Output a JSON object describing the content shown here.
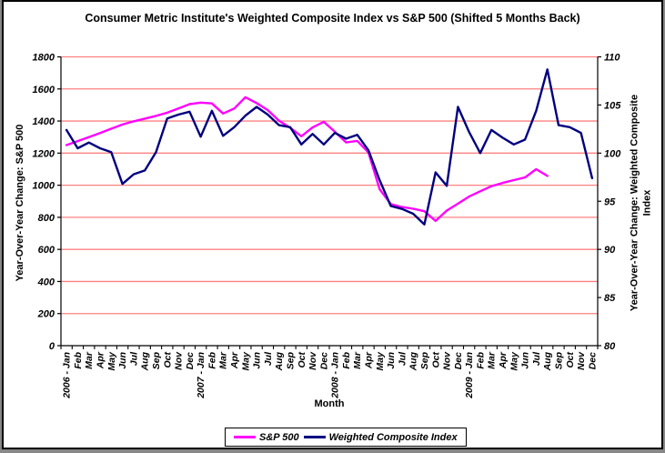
{
  "chart": {
    "title": "Consumer Metric Institute's Weighted Composite Index vs S&P 500 (Shifted 5 Months Back)"
  },
  "chart_data": {
    "type": "line",
    "title": "Consumer Metric Institute's Weighted Composite Index vs S&P 500 (Shifted 5 Months Back)",
    "legend_position": "bottom",
    "grid": "horizontal",
    "gridline_color": "#FF8080",
    "axis_color": "#000000",
    "x_axis": {
      "label": "Month",
      "categories": [
        "2006 - Jan",
        "Feb",
        "Mar",
        "Apr",
        "May",
        "Jun",
        "Jul",
        "Aug",
        "Sep",
        "Oct",
        "Nov",
        "Dec",
        "2007 - Jan",
        "Feb",
        "Mar",
        "Apr",
        "May",
        "Jun",
        "Jul",
        "Aug",
        "Sep",
        "Oct",
        "Nov",
        "Dec",
        "2008 - Jan",
        "Feb",
        "Mar",
        "Apr",
        "May",
        "Jun",
        "Jul",
        "Aug",
        "Sep",
        "Oct",
        "Nov",
        "Dec",
        "2009 - Jan",
        "Feb",
        "Mar",
        "Apr",
        "May",
        "Jun",
        "Jul",
        "Aug",
        "Sep",
        "Oct",
        "Nov",
        "Dec"
      ]
    },
    "y_axis_left": {
      "label": "Year-Over-Year Change: S&P 500",
      "min": 0,
      "max": 1800,
      "tick_interval": 200,
      "ticks": [
        0,
        200,
        400,
        600,
        800,
        1000,
        1200,
        1400,
        1600,
        1800
      ]
    },
    "y_axis_right": {
      "label_line1": "Year-Over-Year Change: Weighted Composite",
      "label_line2": "Index",
      "min": 80,
      "max": 110,
      "tick_interval": 5,
      "ticks": [
        80,
        85,
        90,
        95,
        100,
        105,
        110
      ]
    },
    "series": [
      {
        "name": "S&P 500",
        "axis": "left",
        "color": "#FF00FF",
        "values": [
          1250,
          1275,
          1300,
          1325,
          1352,
          1378,
          1398,
          1415,
          1432,
          1452,
          1478,
          1505,
          1515,
          1510,
          1447,
          1478,
          1548,
          1512,
          1468,
          1402,
          1358,
          1305,
          1360,
          1395,
          1333,
          1267,
          1276,
          1204,
          975,
          882,
          864,
          853,
          838,
          777,
          842,
          885,
          929,
          962,
          994,
          1014,
          1032,
          1048,
          1100,
          1058,
          null,
          null,
          null,
          null
        ]
      },
      {
        "name": "Weighted Composite Index",
        "axis": "right",
        "color": "#000080",
        "values": [
          102.4,
          100.5,
          101.1,
          100.5,
          100.1,
          96.8,
          97.8,
          98.2,
          100.1,
          103.6,
          104.0,
          104.3,
          101.7,
          104.4,
          101.8,
          102.7,
          103.9,
          104.8,
          104.0,
          102.9,
          102.7,
          100.9,
          102.0,
          100.9,
          102.1,
          101.5,
          101.9,
          100.3,
          97.2,
          94.5,
          94.2,
          93.7,
          92.6,
          98.0,
          96.6,
          104.8,
          102.2,
          100.0,
          102.4,
          101.6,
          100.9,
          101.4,
          104.4,
          108.7,
          102.9,
          102.7,
          102.1,
          97.4
        ]
      }
    ]
  }
}
